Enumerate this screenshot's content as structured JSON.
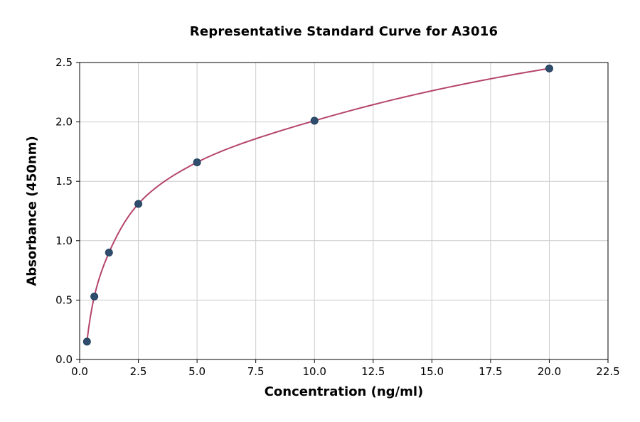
{
  "chart_data": {
    "type": "scatter",
    "title": "Representative Standard Curve for A3016",
    "xlabel": "Concentration (ng/ml)",
    "ylabel": "Absorbance (450nm)",
    "xlim": [
      0,
      22.5
    ],
    "ylim": [
      0,
      2.5
    ],
    "xticks": [
      0,
      2.5,
      5,
      7.5,
      10,
      12.5,
      15,
      17.5,
      20,
      22.5
    ],
    "yticks": [
      0,
      0.5,
      1,
      1.5,
      2,
      2.5
    ],
    "grid": true,
    "legend_position": "none",
    "points": {
      "x": [
        0.3125,
        0.625,
        1.25,
        2.5,
        5,
        10,
        20
      ],
      "y": [
        0.15,
        0.53,
        0.9,
        1.31,
        1.66,
        2.01,
        2.45
      ]
    },
    "fit": "smooth logarithmic curve through data points",
    "colors": {
      "curve": "#b5456b",
      "point": "#2f4d6d",
      "point_edge": "#22405e",
      "grid": "#cccccc",
      "axis": "#000000",
      "background": "#ffffff"
    }
  }
}
